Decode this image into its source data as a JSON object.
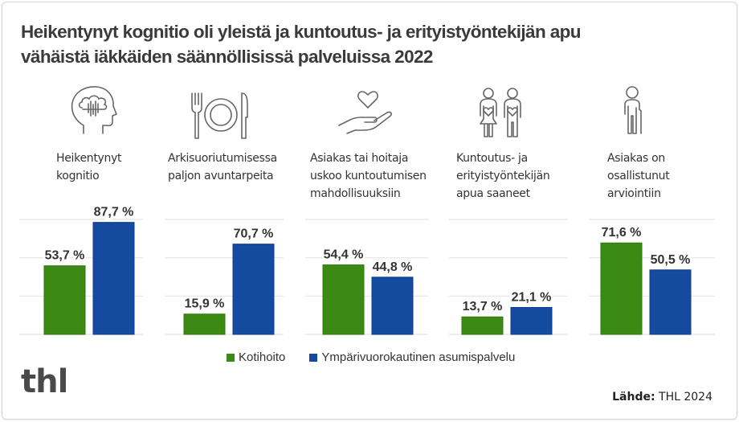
{
  "title_lines": [
    "Heikentynyt kognitio oli yleistä ja kuntoutus- ja erityistyöntekijän apu",
    "vähäistä iäkkäiden säännöllisissä palveluissa 2022"
  ],
  "colors": {
    "kotihoito": "#3a8a14",
    "asumispalvelu": "#144b9f",
    "grid": "#e4e4e4",
    "icon": "#666666",
    "text": "#333333"
  },
  "icons": [
    "head-cloud-icon",
    "plate-cutlery-icon",
    "hand-heart-icon",
    "two-people-hearts-icon",
    "elderly-person-cane-icon"
  ],
  "logo": "thl",
  "source": {
    "label": "Lähde:",
    "value": "THL 2024"
  },
  "chart_data": {
    "type": "bar",
    "title": "Heikentynyt kognitio oli yleistä ja kuntoutus- ja erityistyöntekijän apu vähäistä iäkkäiden säännöllisissä palveluissa 2022",
    "categories": [
      "Heikentynyt\nkognitio",
      "Arkisuoriutumisessa\npaljon avuntarpeita",
      "Asiakas tai hoitaja\nuskoo kuntoutumisen\nmahdollisuuksiin",
      "Kuntoutus- ja\nerityistyöntekijän\napua saaneet",
      "Asiakas on\nosallistunut\narviointiin"
    ],
    "series": [
      {
        "name": "Kotihoito",
        "values": [
          53.7,
          15.9,
          54.4,
          13.7,
          71.6
        ],
        "labels": [
          "53,7 %",
          "15,9 %",
          "54,4 %",
          "13,7 %",
          "71,6 %"
        ]
      },
      {
        "name": "Ympärivuorokautinen asumispalvelu",
        "values": [
          87.7,
          70.7,
          44.8,
          21.1,
          50.5
        ],
        "labels": [
          "87,7 %",
          "70,7 %",
          "44,8 %",
          "21,1 %",
          "50,5 %"
        ]
      }
    ],
    "xlabel": "",
    "ylabel": "",
    "ylim": [
      0,
      90
    ],
    "gridlines": [
      0,
      30,
      60,
      90
    ],
    "grid": true,
    "legend": "bottom-center",
    "unit": "%"
  }
}
